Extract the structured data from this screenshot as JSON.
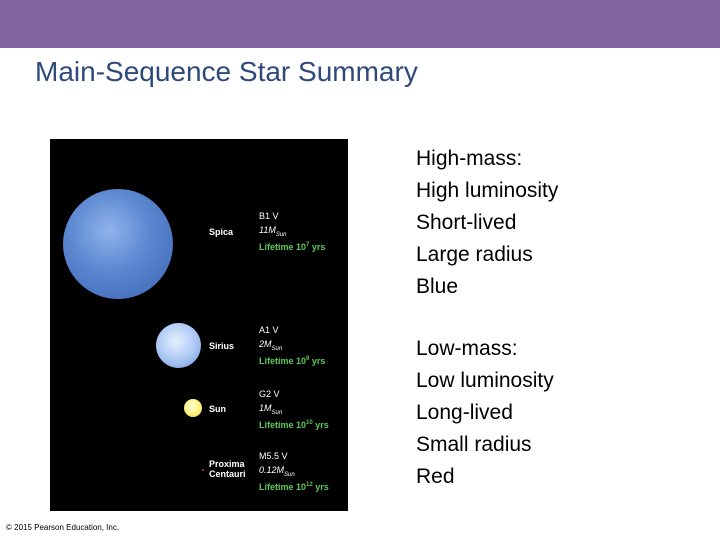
{
  "slide": {
    "title": "Main-Sequence Star Summary",
    "copyright": "© 2015 Pearson Education, Inc."
  },
  "figure": {
    "stars": [
      {
        "name": "Spica",
        "type": "B1 V",
        "mass": "11M",
        "mass_sub": "Sun",
        "lifetime": "Lifetime 10",
        "lifetime_exp": "7",
        "lifetime_unit": " yrs"
      },
      {
        "name": "Sirius",
        "type": "A1 V",
        "mass": "2M",
        "mass_sub": "Sun",
        "lifetime": "Lifetime 10",
        "lifetime_exp": "9",
        "lifetime_unit": " yrs"
      },
      {
        "name": "Sun",
        "type": "G2 V",
        "mass": "1M",
        "mass_sub": "Sun",
        "lifetime": "Lifetime 10",
        "lifetime_exp": "10",
        "lifetime_unit": " yrs"
      },
      {
        "name_line1": "Proxima",
        "name_line2": "Centauri",
        "type": "M5.5 V",
        "mass": "0.12M",
        "mass_sub": "Sun",
        "lifetime": "Lifetime 10",
        "lifetime_exp": "12",
        "lifetime_unit": " yrs"
      }
    ],
    "colors": {
      "spica": "#5a86d0",
      "sirius": "#a9c6f3",
      "sun": "#fff27a",
      "proxima": "#c03020"
    }
  },
  "high_mass": {
    "heading": "High-mass:",
    "items": [
      "High luminosity",
      "Short-lived",
      "Large radius",
      "Blue"
    ]
  },
  "low_mass": {
    "heading": "Low-mass:",
    "items": [
      "Low luminosity",
      "Long-lived",
      "Small radius",
      "Red"
    ]
  }
}
